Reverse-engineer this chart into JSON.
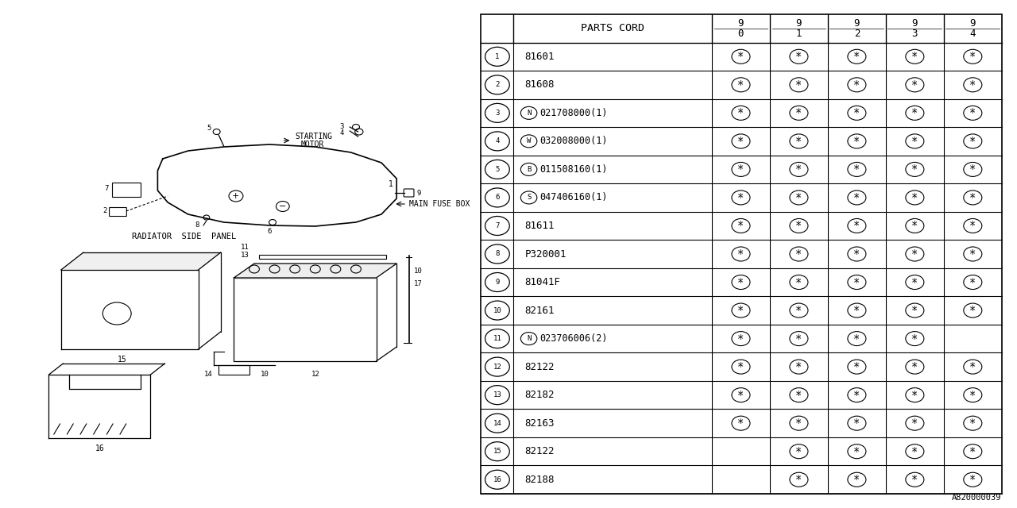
{
  "bg_color": "#ffffff",
  "table_header": "PARTS CORD",
  "year_cols": [
    "9\n0",
    "9\n1",
    "9\n2",
    "9\n3",
    "9\n4"
  ],
  "rows": [
    {
      "num": "1",
      "prefix_letter": "",
      "code": "81601",
      "marks": [
        1,
        1,
        1,
        1,
        1
      ]
    },
    {
      "num": "2",
      "prefix_letter": "",
      "code": "81608",
      "marks": [
        1,
        1,
        1,
        1,
        1
      ]
    },
    {
      "num": "3",
      "prefix_letter": "N",
      "code": "021708000(1)",
      "marks": [
        1,
        1,
        1,
        1,
        1
      ]
    },
    {
      "num": "4",
      "prefix_letter": "W",
      "code": "032008000(1)",
      "marks": [
        1,
        1,
        1,
        1,
        1
      ]
    },
    {
      "num": "5",
      "prefix_letter": "B",
      "code": "011508160(1)",
      "marks": [
        1,
        1,
        1,
        1,
        1
      ]
    },
    {
      "num": "6",
      "prefix_letter": "S",
      "code": "047406160(1)",
      "marks": [
        1,
        1,
        1,
        1,
        1
      ]
    },
    {
      "num": "7",
      "prefix_letter": "",
      "code": "81611",
      "marks": [
        1,
        1,
        1,
        1,
        1
      ]
    },
    {
      "num": "8",
      "prefix_letter": "",
      "code": "P320001",
      "marks": [
        1,
        1,
        1,
        1,
        1
      ]
    },
    {
      "num": "9",
      "prefix_letter": "",
      "code": "81041F",
      "marks": [
        1,
        1,
        1,
        1,
        1
      ]
    },
    {
      "num": "10",
      "prefix_letter": "",
      "code": "82161",
      "marks": [
        1,
        1,
        1,
        1,
        1
      ]
    },
    {
      "num": "11",
      "prefix_letter": "N",
      "code": "023706006(2)",
      "marks": [
        1,
        1,
        1,
        1,
        0
      ]
    },
    {
      "num": "12",
      "prefix_letter": "",
      "code": "82122",
      "marks": [
        1,
        1,
        1,
        1,
        1
      ]
    },
    {
      "num": "13",
      "prefix_letter": "",
      "code": "82182",
      "marks": [
        1,
        1,
        1,
        1,
        1
      ]
    },
    {
      "num": "14",
      "prefix_letter": "",
      "code": "82163",
      "marks": [
        1,
        1,
        1,
        1,
        1
      ]
    },
    {
      "num": "15",
      "prefix_letter": "",
      "code": "82122",
      "marks": [
        0,
        1,
        1,
        1,
        1
      ]
    },
    {
      "num": "16",
      "prefix_letter": "",
      "code": "82188",
      "marks": [
        0,
        1,
        1,
        1,
        1
      ]
    }
  ],
  "doc_number": "A820000039",
  "line_color": "#000000",
  "text_color": "#000000"
}
